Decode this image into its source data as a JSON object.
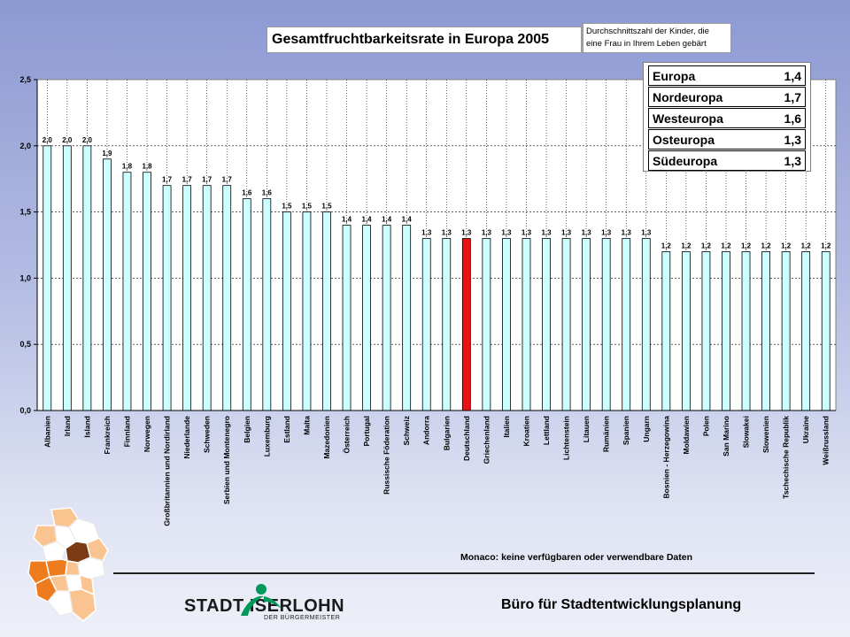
{
  "slide": {
    "title": "Gesamtfruchtbarkeitsrate in Europa 2005",
    "subtitle_line1": "Durchschnittszahl der Kinder, die",
    "subtitle_line2": "eine Frau in Ihrem Leben gebärt",
    "note": "Monaco: keine verfügbaren oder verwendbare Daten",
    "footer": "Büro für Stadtentwicklungsplanung",
    "brand_main": "STADT ISERLOHN",
    "brand_sub": "DER BÜRGERMEISTER"
  },
  "legend": [
    {
      "region": "Europa",
      "value": "1,4"
    },
    {
      "region": "Nordeuropa",
      "value": "1,7"
    },
    {
      "region": "Westeuropa",
      "value": "1,6"
    },
    {
      "region": "Osteuropa",
      "value": "1,3"
    },
    {
      "region": "Südeuropa",
      "value": "1,3"
    }
  ],
  "colors": {
    "bar_fill": "#ccffff",
    "highlight_fill": "#ee1111",
    "bar_stroke": "#000000",
    "map_orange": "#ee7c1f",
    "map_light": "#f9c48f",
    "map_brown": "#7a3a14",
    "brand_green": "#00995c"
  },
  "chart_data": {
    "type": "bar",
    "title": "Gesamtfruchtbarkeitsrate in Europa 2005",
    "categories": [
      "Albanien",
      "Irland",
      "Island",
      "Frankreich",
      "Finnland",
      "Norwegen",
      "Großbritannien und Nordirland",
      "Niederlande",
      "Schweden",
      "Serbien und Montenegro",
      "Belgien",
      "Luxemburg",
      "Estland",
      "Malta",
      "Mazedonien",
      "Österreich",
      "Portugal",
      "Russische Föderation",
      "Schweiz",
      "Andorra",
      "Bulgarien",
      "Deutschland",
      "Griechenland",
      "Italien",
      "Kroatien",
      "Lettland",
      "Lichtenstein",
      "Litauen",
      "Rumänien",
      "Spanien",
      "Ungarn",
      "Bosnien - Herzegowina",
      "Moldawien",
      "Polen",
      "San Marino",
      "Slowakei",
      "Slowenien",
      "Tschechische Republik",
      "Ukraine",
      "Weißrussland"
    ],
    "values": [
      2.0,
      2.0,
      2.0,
      1.9,
      1.8,
      1.8,
      1.7,
      1.7,
      1.7,
      1.7,
      1.6,
      1.6,
      1.5,
      1.5,
      1.5,
      1.4,
      1.4,
      1.4,
      1.4,
      1.3,
      1.3,
      1.3,
      1.3,
      1.3,
      1.3,
      1.3,
      1.3,
      1.3,
      1.3,
      1.3,
      1.3,
      1.2,
      1.2,
      1.2,
      1.2,
      1.2,
      1.2,
      1.2,
      1.2,
      1.2
    ],
    "value_labels": [
      "2,0",
      "2,0",
      "2,0",
      "1,9",
      "1,8",
      "1,8",
      "1,7",
      "1,7",
      "1,7",
      "1,7",
      "1,6",
      "1,6",
      "1,5",
      "1,5",
      "1,5",
      "1,4",
      "1,4",
      "1,4",
      "1,4",
      "1,3",
      "1,3",
      "1,3",
      "1,3",
      "1,3",
      "1,3",
      "1,3",
      "1,3",
      "1,3",
      "1,3",
      "1,3",
      "1,3",
      "1,2",
      "1,2",
      "1,2",
      "1,2",
      "1,2",
      "1,2",
      "1,2",
      "1,2",
      "1,2"
    ],
    "highlight": "Deutschland",
    "yticks": [
      "0,0",
      "0,5",
      "1,0",
      "1,5",
      "2,0",
      "2,5"
    ],
    "ylim": [
      0,
      2.5
    ],
    "grid": true
  }
}
